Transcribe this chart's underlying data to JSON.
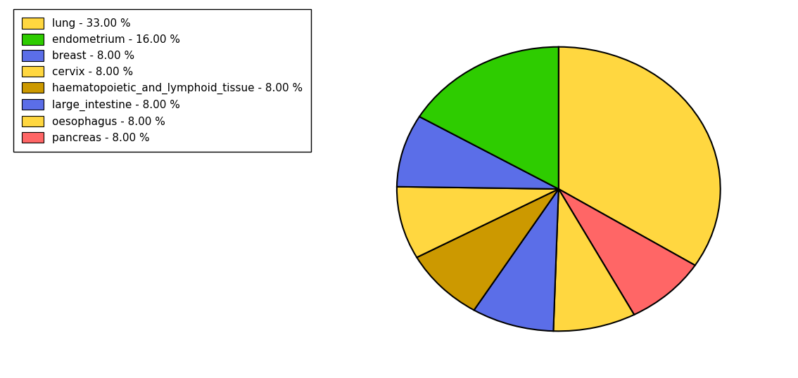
{
  "labels": [
    "lung",
    "endometrium",
    "breast",
    "cervix",
    "haematopoietic_and_lymphoid_tissue",
    "large_intestine",
    "oesophagus",
    "pancreas"
  ],
  "sizes": [
    33.0,
    16.0,
    8.0,
    8.0,
    8.0,
    8.0,
    8.0,
    8.0
  ],
  "legend_labels": [
    "lung - 33.00 %",
    "endometrium - 16.00 %",
    "breast - 8.00 %",
    "cervix - 8.00 %",
    "haematopoietic_and_lymphoid_tissue - 8.00 %",
    "large_intestine - 8.00 %",
    "oesophagus - 8.00 %",
    "pancreas - 8.00 %"
  ],
  "legend_colors": [
    "#FFD740",
    "#2ECC00",
    "#5B6EE8",
    "#FFD740",
    "#CC9900",
    "#5B6EE8",
    "#FFD740",
    "#FF6666"
  ],
  "pie_order_sizes": [
    33.0,
    16.0,
    8.0,
    8.0,
    8.0,
    8.0,
    8.0,
    8.0
  ],
  "pie_order_colors": [
    "#FFD740",
    "#2ECC00",
    "#5B6EE8",
    "#FFD740",
    "#CC9900",
    "#5B6EE8",
    "#FFD740",
    "#FF6666"
  ],
  "pie_order_labels": [
    "lung",
    "endometrium",
    "large_intestine",
    "oesophagus",
    "haematopoietic",
    "breast",
    "cervix",
    "pancreas"
  ],
  "figsize": [
    11.34,
    5.38
  ],
  "dpi": 100
}
